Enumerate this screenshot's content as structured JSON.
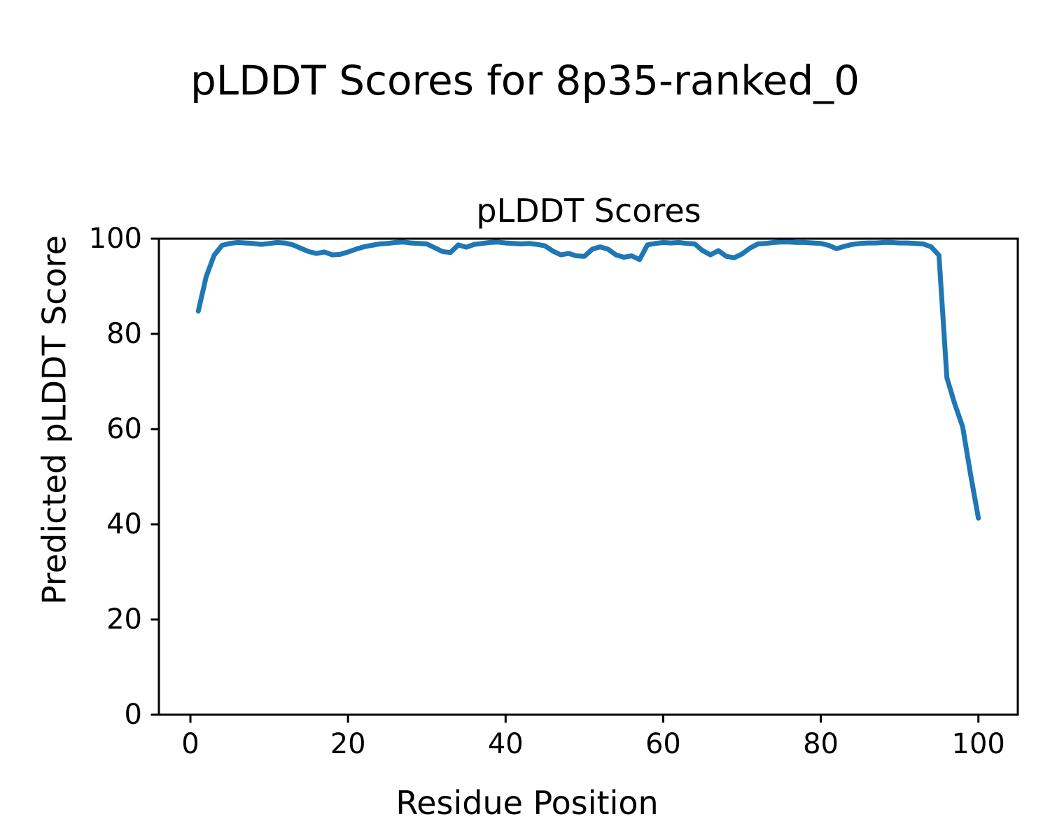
{
  "figure": {
    "suptitle": "pLDDT Scores for 8p35-ranked_0"
  },
  "axes": {
    "title": "pLDDT Scores",
    "xlabel": "Residue Position",
    "ylabel": "Predicted pLDDT Score"
  },
  "chart_data": {
    "type": "line",
    "title": "pLDDT Scores",
    "suptitle": "pLDDT Scores for 8p35-ranked_0",
    "xlabel": "Residue Position",
    "ylabel": "Predicted pLDDT Score",
    "grid": false,
    "legend": null,
    "line_color": "#1f77b4",
    "axis_color": "#000000",
    "xlim": [
      -4,
      105
    ],
    "ylim": [
      0,
      100
    ],
    "x_ticks": [
      0,
      20,
      40,
      60,
      80,
      100
    ],
    "y_ticks": [
      0,
      20,
      40,
      60,
      80,
      100
    ],
    "x_start": 1,
    "series": [
      {
        "name": "pLDDT",
        "x_description": "Residue positions 1 to 100",
        "values": [
          84.8,
          92.0,
          96.5,
          98.6,
          99.0,
          99.2,
          99.1,
          99.0,
          98.8,
          99.0,
          99.2,
          99.1,
          98.7,
          98.0,
          97.3,
          96.9,
          97.2,
          96.6,
          96.7,
          97.2,
          97.8,
          98.3,
          98.6,
          98.9,
          99.0,
          99.2,
          99.3,
          99.1,
          99.0,
          98.9,
          98.1,
          97.3,
          97.1,
          98.7,
          98.2,
          98.8,
          99.0,
          99.2,
          99.3,
          99.1,
          99.0,
          98.9,
          99.0,
          98.8,
          98.5,
          97.4,
          96.6,
          96.9,
          96.4,
          96.3,
          97.8,
          98.3,
          97.8,
          96.6,
          96.1,
          96.4,
          95.6,
          98.7,
          99.0,
          99.2,
          99.1,
          99.2,
          99.0,
          98.9,
          97.5,
          96.6,
          97.5,
          96.3,
          96.0,
          96.8,
          98.0,
          98.9,
          99.0,
          99.2,
          99.3,
          99.3,
          99.2,
          99.2,
          99.1,
          99.0,
          98.6,
          97.9,
          98.4,
          98.8,
          99.0,
          99.1,
          99.1,
          99.2,
          99.2,
          99.1,
          99.1,
          99.0,
          98.9,
          98.3,
          96.5,
          70.8,
          65.3,
          60.5,
          50.5,
          41.3
        ]
      }
    ]
  }
}
